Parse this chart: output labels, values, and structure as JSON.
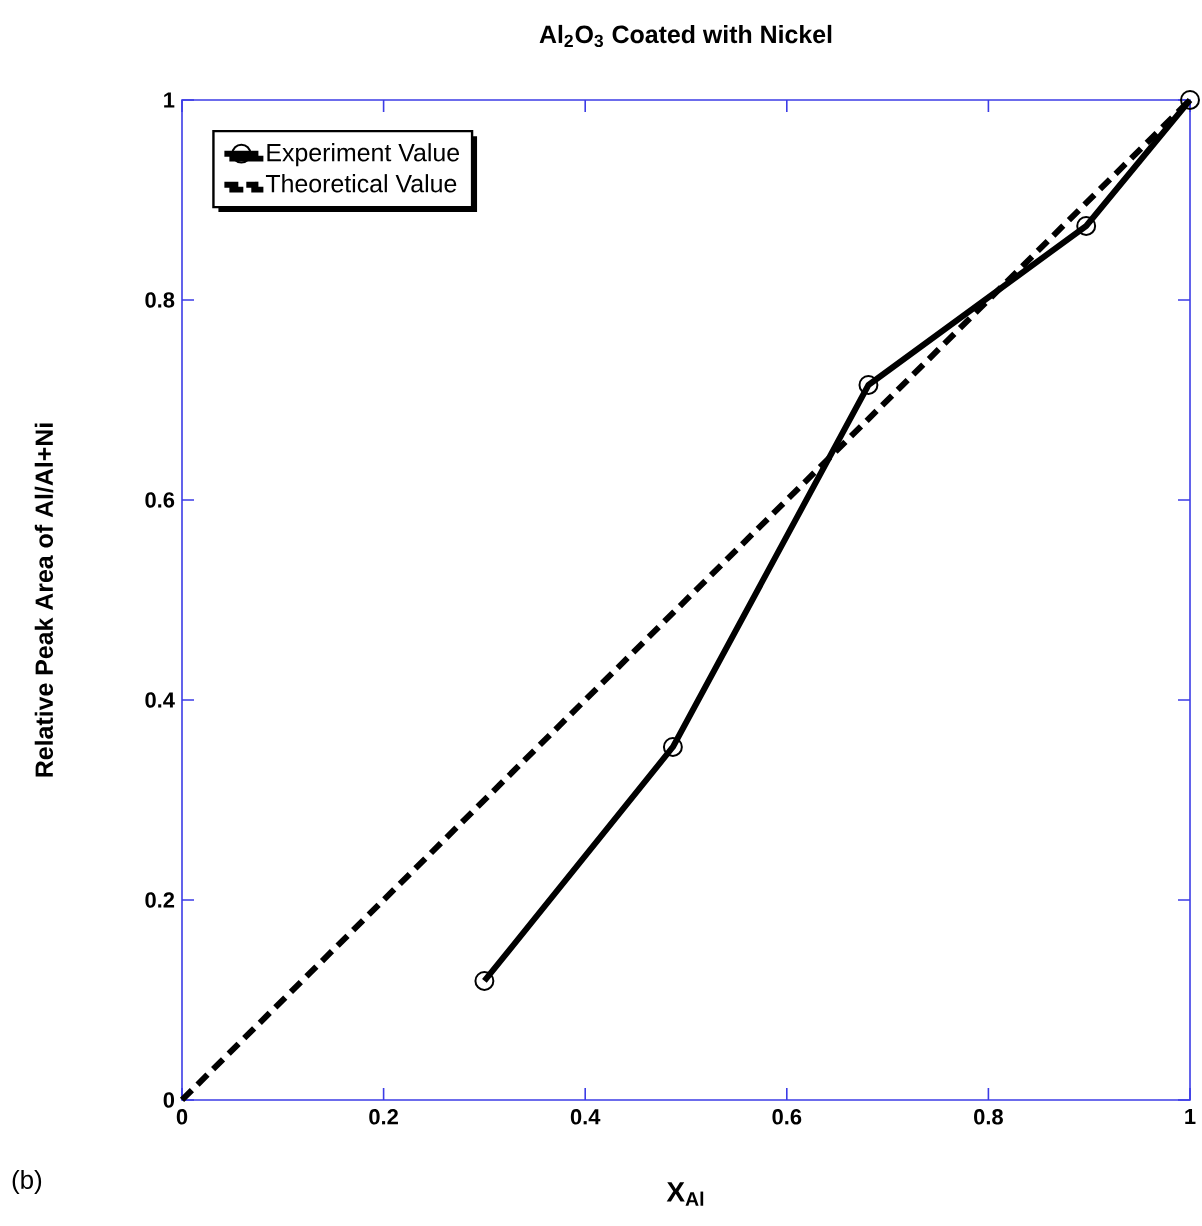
{
  "chart_data": {
    "type": "line",
    "title": "Al$_{2}$O$_{3}$ Coated with Nickel",
    "xlabel": "X$_{Al}$",
    "ylabel": "Relative Peak Area of Al/Al+Ni",
    "annotations": [
      "(b)"
    ],
    "series": [
      {
        "name": "Experiment Value",
        "color": "#000000",
        "x": [
          0.3,
          0.487,
          0.681,
          0.897,
          1.0
        ],
        "values": [
          0.119,
          0.353,
          0.715,
          0.874,
          1.0
        ],
        "marker": "circle",
        "line_style": "solid"
      },
      {
        "name": "Theoretical Value",
        "color": "#000000",
        "x": [
          0,
          1
        ],
        "values": [
          0,
          1
        ],
        "marker": "none",
        "line_style": "dashed"
      }
    ],
    "xlim": [
      0,
      1
    ],
    "ylim": [
      0,
      1
    ],
    "xticks": [
      0,
      0.2,
      0.4,
      0.6,
      0.8,
      1
    ],
    "yticks": [
      0,
      0.2,
      0.4,
      0.6,
      0.8,
      1
    ],
    "grid": false,
    "legend": "top left"
  }
}
